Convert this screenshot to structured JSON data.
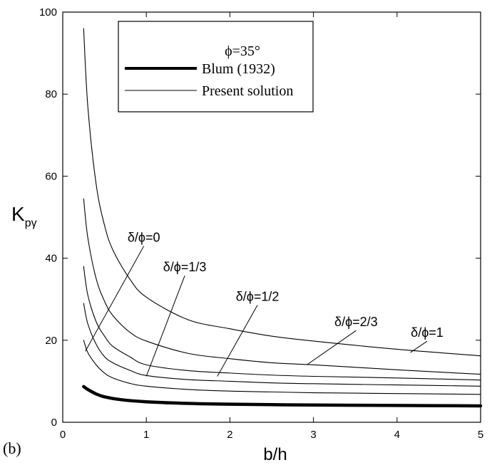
{
  "panel_label": "(b)",
  "chart_data": {
    "type": "line",
    "xlabel": "b/h",
    "ylabel": "K",
    "ylabel_sub": "pγ",
    "xlim": [
      0,
      5
    ],
    "ylim": [
      0,
      100
    ],
    "xticks": [
      0,
      1,
      2,
      3,
      4,
      5
    ],
    "yticks": [
      0,
      20,
      40,
      60,
      80,
      100
    ],
    "grid": false,
    "legend": {
      "placement": "top-center",
      "title": "ϕ=35°",
      "entries": [
        {
          "label": "Blum (1932)",
          "style": "thick"
        },
        {
          "label": "Present solution",
          "style": "thin"
        }
      ]
    },
    "series": [
      {
        "name": "Blum (1932)",
        "style": "thick",
        "x": [
          0.25,
          0.3,
          0.4,
          0.5,
          0.7,
          1,
          1.5,
          2,
          3,
          4,
          5
        ],
        "y": [
          8.7,
          8.0,
          6.9,
          6.2,
          5.5,
          5.0,
          4.6,
          4.4,
          4.2,
          4.1,
          4.0
        ]
      },
      {
        "label_ref": 0,
        "style": "thin",
        "x": [
          0.25,
          0.3,
          0.4,
          0.5,
          0.6,
          0.8,
          1,
          1.5,
          2,
          2.5,
          3,
          4,
          5
        ],
        "y": [
          20,
          17,
          14,
          12,
          10.8,
          9.5,
          8.8,
          8.0,
          7.6,
          7.4,
          7.2,
          7.0,
          6.8
        ]
      },
      {
        "label_ref": 1,
        "style": "thin",
        "x": [
          0.25,
          0.3,
          0.4,
          0.5,
          0.6,
          0.8,
          1,
          1.5,
          2,
          2.5,
          3,
          4,
          5
        ],
        "y": [
          29,
          24,
          19,
          16,
          14.5,
          12.7,
          11.4,
          10.4,
          10.0,
          9.6,
          9.4,
          9.1,
          8.8
        ]
      },
      {
        "label_ref": 2,
        "style": "thin",
        "x": [
          0.25,
          0.3,
          0.4,
          0.5,
          0.6,
          0.8,
          1,
          1.5,
          2,
          2.5,
          3,
          4,
          5
        ],
        "y": [
          38,
          31,
          24.5,
          21,
          18.5,
          16,
          14,
          12.6,
          12.0,
          11.5,
          11.2,
          10.8,
          10.3
        ]
      },
      {
        "label_ref": 3,
        "style": "thin",
        "x": [
          0.25,
          0.3,
          0.4,
          0.5,
          0.6,
          0.8,
          1,
          1.5,
          2,
          2.5,
          3,
          4,
          5
        ],
        "y": [
          54.5,
          45,
          35,
          29.5,
          26,
          22,
          19.8,
          16.8,
          15.5,
          14.5,
          14.0,
          12.8,
          11.7
        ]
      },
      {
        "label_ref": 4,
        "style": "thin",
        "x": [
          0.25,
          0.3,
          0.4,
          0.5,
          0.6,
          0.8,
          1,
          1.5,
          2,
          2.5,
          3,
          4,
          5
        ],
        "y": [
          96,
          77,
          58,
          48,
          42,
          35,
          30.5,
          25,
          22.8,
          21,
          19.8,
          17.8,
          16.2
        ]
      }
    ],
    "annotations": [
      {
        "text": "δ/ϕ=0",
        "x": 0.97,
        "y": 44.0,
        "tip": [
          0.27,
          17.3
        ]
      },
      {
        "text": "δ/ϕ=1/3",
        "x": 1.46,
        "y": 36.8,
        "tip": [
          1.0,
          11.2
        ]
      },
      {
        "text": "δ/ϕ=1/2",
        "x": 2.33,
        "y": 29.6,
        "tip": [
          1.85,
          11.2
        ]
      },
      {
        "text": "δ/ϕ=2/3",
        "x": 3.51,
        "y": 23.4,
        "tip": [
          2.92,
          14.0
        ]
      },
      {
        "text": "δ/ϕ=1",
        "x": 4.36,
        "y": 20.8,
        "tip": [
          4.16,
          17.0
        ]
      }
    ]
  }
}
